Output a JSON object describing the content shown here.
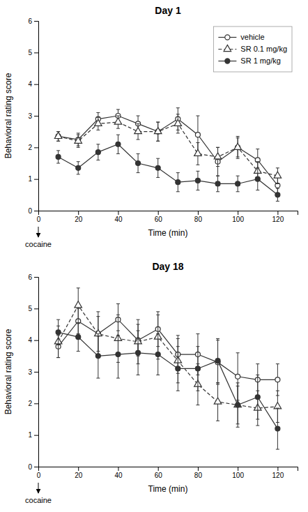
{
  "chart_data": [
    {
      "type": "line",
      "title": "Day 1",
      "xlabel": "Time (min)",
      "ylabel": "Behavioral rating score",
      "x": [
        10,
        20,
        30,
        40,
        50,
        60,
        70,
        80,
        90,
        100,
        110,
        120
      ],
      "series": [
        {
          "name": "vehicle",
          "color": "#333333",
          "marker": "open-circle",
          "line_style": "solid",
          "values": [
            2.35,
            2.25,
            2.9,
            3.0,
            2.75,
            2.5,
            2.9,
            2.4,
            1.55,
            2.0,
            1.6,
            0.8
          ],
          "errors": [
            0.15,
            0.2,
            0.2,
            0.2,
            0.25,
            0.3,
            0.35,
            0.6,
            0.45,
            0.3,
            0.35,
            0.25
          ]
        },
        {
          "name": "SR 0.1 mg/kg",
          "color": "#333333",
          "marker": "open-triangle",
          "line_style": "dashed",
          "values": [
            2.35,
            2.2,
            2.75,
            2.8,
            2.5,
            2.5,
            2.75,
            1.8,
            1.7,
            2.0,
            1.25,
            1.1
          ],
          "errors": [
            0.15,
            0.2,
            0.2,
            0.2,
            0.25,
            0.3,
            0.3,
            0.35,
            0.3,
            0.35,
            0.3,
            0.25
          ]
        },
        {
          "name": "SR 1 mg/kg",
          "color": "#333333",
          "marker": "circle",
          "line_style": "solid",
          "values": [
            1.7,
            1.35,
            1.85,
            2.1,
            1.5,
            1.35,
            0.9,
            0.95,
            0.85,
            0.85,
            1.0,
            0.5
          ],
          "errors": [
            0.2,
            0.2,
            0.25,
            0.3,
            0.3,
            0.3,
            0.3,
            0.3,
            0.25,
            0.25,
            0.35,
            0.2
          ]
        }
      ],
      "xlim": [
        0,
        130
      ],
      "xticks": [
        0,
        20,
        40,
        60,
        80,
        100,
        120
      ],
      "ylim": [
        0,
        6
      ],
      "yticks": [
        0,
        1,
        2,
        3,
        4,
        5,
        6
      ],
      "legend": "upper right",
      "annotations": [
        {
          "text": "cocaine",
          "x": 0
        }
      ]
    },
    {
      "type": "line",
      "title": "Day 18",
      "xlabel": "Time (min)",
      "ylabel": "Behavioral rating score",
      "x": [
        10,
        20,
        30,
        40,
        50,
        60,
        70,
        80,
        90,
        100,
        110,
        120
      ],
      "series": [
        {
          "name": "vehicle",
          "color": "#333333",
          "marker": "open-circle",
          "line_style": "solid",
          "values": [
            3.8,
            4.6,
            4.2,
            4.65,
            4.0,
            4.35,
            3.55,
            3.55,
            3.3,
            2.85,
            2.75,
            2.75
          ],
          "errors": [
            0.35,
            0.4,
            0.55,
            0.5,
            0.5,
            0.55,
            0.6,
            0.65,
            0.7,
            0.75,
            0.5,
            0.5
          ]
        },
        {
          "name": "SR 0.1 mg/kg",
          "color": "#333333",
          "marker": "open-triangle",
          "line_style": "dashed",
          "values": [
            3.95,
            5.1,
            4.2,
            4.05,
            3.95,
            4.1,
            3.35,
            2.6,
            2.05,
            1.95,
            1.85,
            1.9
          ],
          "errors": [
            0.5,
            0.55,
            0.7,
            0.75,
            0.7,
            0.7,
            0.7,
            0.65,
            0.6,
            0.6,
            0.55,
            0.5
          ]
        },
        {
          "name": "SR 1 mg/kg",
          "color": "#333333",
          "marker": "circle",
          "line_style": "solid",
          "values": [
            4.25,
            4.1,
            3.5,
            3.55,
            3.6,
            3.55,
            3.1,
            3.1,
            3.35,
            1.95,
            2.2,
            1.2
          ],
          "errors": [
            0.4,
            0.45,
            0.7,
            0.75,
            0.7,
            0.65,
            0.7,
            0.7,
            0.7,
            0.7,
            0.7,
            0.65
          ]
        }
      ],
      "xlim": [
        0,
        130
      ],
      "xticks": [
        0,
        20,
        40,
        60,
        80,
        100,
        120
      ],
      "ylim": [
        0,
        6
      ],
      "yticks": [
        0,
        1,
        2,
        3,
        4,
        5,
        6
      ],
      "annotations": [
        {
          "text": "cocaine",
          "x": 0
        }
      ]
    }
  ]
}
